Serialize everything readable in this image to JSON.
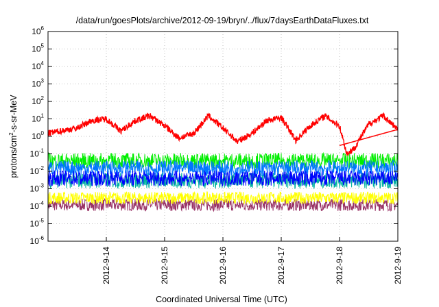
{
  "chart_data": {
    "type": "line",
    "title": "/data/run/goesPlots/archive/2012-09-19/bryn/../flux/7daysEarthDataFluxes.txt",
    "xlabel": "Coordinated Universal Time (UTC)",
    "ylabel": {
      "base": "protons/cm",
      "sup": "2",
      "rest": "-s-sr-MeV"
    },
    "yscale": "log",
    "ylim": [
      1e-06,
      1000000.0
    ],
    "yticks": [
      {
        "value": 1e-06,
        "base": "10",
        "exp": "-6"
      },
      {
        "value": 1e-05,
        "base": "10",
        "exp": "-5"
      },
      {
        "value": 0.0001,
        "base": "10",
        "exp": "-4"
      },
      {
        "value": 0.001,
        "base": "10",
        "exp": "-3"
      },
      {
        "value": 0.01,
        "base": "10",
        "exp": "-2"
      },
      {
        "value": 0.1,
        "base": "10",
        "exp": "-1"
      },
      {
        "value": 1.0,
        "base": "10",
        "exp": "0"
      },
      {
        "value": 10.0,
        "base": "10",
        "exp": "1"
      },
      {
        "value": 100.0,
        "base": "10",
        "exp": "2"
      },
      {
        "value": 1000.0,
        "base": "10",
        "exp": "3"
      },
      {
        "value": 10000.0,
        "base": "10",
        "exp": "4"
      },
      {
        "value": 100000.0,
        "base": "10",
        "exp": "5"
      },
      {
        "value": 1000000.0,
        "base": "10",
        "exp": "6"
      }
    ],
    "xlim": [
      "2012-09-13",
      "2012-09-19"
    ],
    "xticks": [
      "2012-9-14",
      "2012-9-15",
      "2012-9-16",
      "2012-9-17",
      "2012-9-18",
      "2012-9-19"
    ],
    "grid": true,
    "series": [
      {
        "color": "#993366",
        "x": [
          "2012-09-13",
          "2012-09-19"
        ],
        "values": [
          0.00012,
          0.00012
        ]
      },
      {
        "color": "#ffff00",
        "x": [
          "2012-09-13",
          "2012-09-19"
        ],
        "values": [
          0.0003,
          0.0003
        ]
      },
      {
        "color": "#00b3a0",
        "x": [
          "2012-09-13",
          "2012-09-19"
        ],
        "values": [
          0.003,
          0.003
        ]
      },
      {
        "color": "#00ee00",
        "x": [
          "2012-09-13",
          "2012-09-19"
        ],
        "values": [
          0.04,
          0.04
        ]
      },
      {
        "color": "#0077ff",
        "x": [
          "2012-09-13",
          "2012-09-19"
        ],
        "values": [
          0.015,
          0.015
        ]
      },
      {
        "color": "#0000ff",
        "x": [
          "2012-09-13",
          "2012-09-19"
        ],
        "values": [
          0.004,
          0.004
        ]
      },
      {
        "color": "#ff0000",
        "x": [
          "2012-09-13",
          "2012-09-13 12:00",
          "2012-09-13 18:00",
          "2012-09-14 00:00",
          "2012-09-14 06:00",
          "2012-09-14 12:00",
          "2012-09-14 18:00",
          "2012-09-15 00:00",
          "2012-09-15 06:00",
          "2012-09-15 12:00",
          "2012-09-15 18:00",
          "2012-09-16 00:00",
          "2012-09-16 06:00",
          "2012-09-16 12:00",
          "2012-09-16 18:00",
          "2012-09-17 00:00",
          "2012-09-17 06:00",
          "2012-09-17 12:00",
          "2012-09-17 18:00",
          "2012-09-18 00:00",
          "2012-09-18 03:00",
          "2012-09-18 06:00",
          "2012-09-18 12:00",
          "2012-09-18 18:00",
          "2012-09-19 00:00"
        ],
        "values": [
          1.5,
          3,
          8,
          10,
          2,
          8,
          15,
          4,
          0.8,
          1.5,
          15,
          3,
          0.5,
          1.5,
          8,
          12,
          0.6,
          4,
          15,
          4,
          0.1,
          0.2,
          5,
          15,
          2.5
        ]
      },
      {
        "color": "#ff0000",
        "x": [
          "2012-09-18 00:00",
          "2012-09-19 00:00"
        ],
        "values": [
          0.3,
          2.5
        ]
      }
    ]
  }
}
